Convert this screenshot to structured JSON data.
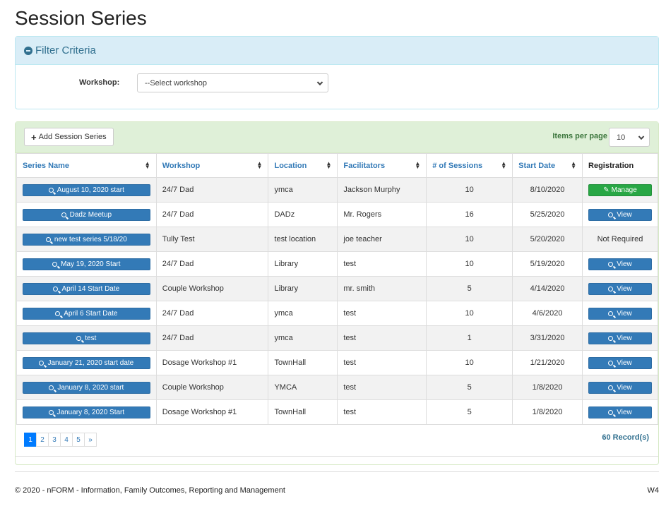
{
  "page_title": "Session Series",
  "filter": {
    "heading": "Filter Criteria",
    "workshop_label": "Workshop:",
    "workshop_value": "--Select workshop"
  },
  "toolbar": {
    "add_label": "Add Session Series",
    "items_per_page_label": "Items per page",
    "items_per_page_value": "10"
  },
  "table": {
    "columns": [
      "Series Name",
      "Workshop",
      "Location",
      "Facilitators",
      "# of Sessions",
      "Start Date",
      "Registration"
    ],
    "rows": [
      {
        "name": "August 10, 2020 start",
        "workshop": "24/7 Dad",
        "location": "ymca",
        "facilitators": "Jackson Murphy",
        "sessions": "10",
        "start": "8/10/2020",
        "registration": "Manage",
        "reg_type": "manage"
      },
      {
        "name": "Dadz Meetup",
        "workshop": "24/7 Dad",
        "location": "DADz",
        "facilitators": "Mr. Rogers",
        "sessions": "16",
        "start": "5/25/2020",
        "registration": "View",
        "reg_type": "view"
      },
      {
        "name": "new test series 5/18/20",
        "workshop": "Tully Test",
        "location": "test location",
        "facilitators": "joe teacher",
        "sessions": "10",
        "start": "5/20/2020",
        "registration": "Not Required",
        "reg_type": "text"
      },
      {
        "name": "May 19, 2020 Start",
        "workshop": "24/7 Dad",
        "location": "Library",
        "facilitators": "test",
        "sessions": "10",
        "start": "5/19/2020",
        "registration": "View",
        "reg_type": "view"
      },
      {
        "name": "April 14 Start Date",
        "workshop": "Couple Workshop",
        "location": "Library",
        "facilitators": "mr. smith",
        "sessions": "5",
        "start": "4/14/2020",
        "registration": "View",
        "reg_type": "view"
      },
      {
        "name": "April 6 Start Date",
        "workshop": "24/7 Dad",
        "location": "ymca",
        "facilitators": "test",
        "sessions": "10",
        "start": "4/6/2020",
        "registration": "View",
        "reg_type": "view"
      },
      {
        "name": "test",
        "workshop": "24/7 Dad",
        "location": "ymca",
        "facilitators": "test",
        "sessions": "1",
        "start": "3/31/2020",
        "registration": "View",
        "reg_type": "view"
      },
      {
        "name": "January 21, 2020 start date",
        "workshop": "Dosage Workshop #1",
        "location": "TownHall",
        "facilitators": "test",
        "sessions": "10",
        "start": "1/21/2020",
        "registration": "View",
        "reg_type": "view"
      },
      {
        "name": "January 8, 2020 start",
        "workshop": "Couple Workshop",
        "location": "YMCA",
        "facilitators": "test",
        "sessions": "5",
        "start": "1/8/2020",
        "registration": "View",
        "reg_type": "view"
      },
      {
        "name": "January 8, 2020 Start",
        "workshop": "Dosage Workshop #1",
        "location": "TownHall",
        "facilitators": "test",
        "sessions": "5",
        "start": "1/8/2020",
        "registration": "View",
        "reg_type": "view"
      }
    ]
  },
  "pagination": {
    "pages": [
      "1",
      "2",
      "3",
      "4",
      "5",
      "»"
    ],
    "current": "1",
    "records": "60 Record(s)"
  },
  "footer": {
    "copyright": "© 2020 - nFORM - Information, Family Outcomes, Reporting and Management",
    "version": "W4"
  },
  "colors": {
    "primary": "#337ab7",
    "success": "#28a745",
    "info_bg": "#d9edf7",
    "success_bg": "#dff0d8"
  }
}
